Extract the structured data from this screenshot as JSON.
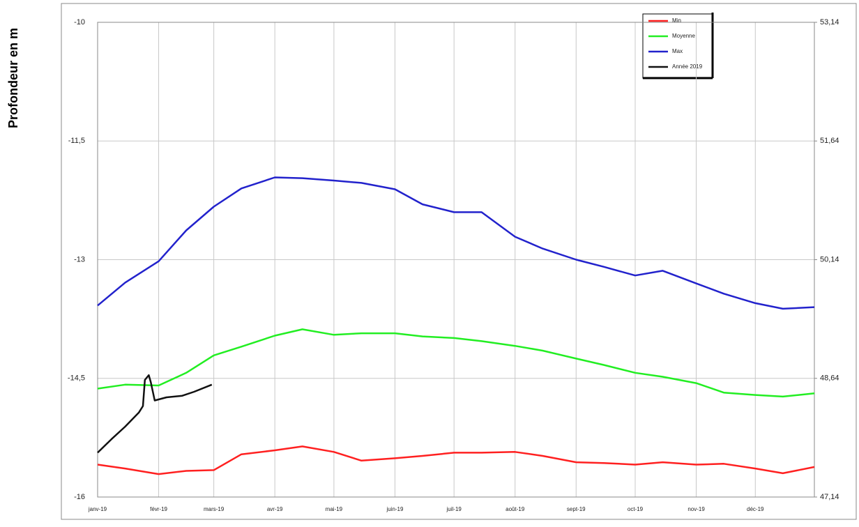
{
  "chart_data": {
    "type": "line",
    "y_label": "Profondeur en m",
    "xlim": [
      1,
      365
    ],
    "xticks": [
      {
        "value": 1,
        "label": "janv-19"
      },
      {
        "value": 32,
        "label": "févr-19"
      },
      {
        "value": 60,
        "label": "mars-19"
      },
      {
        "value": 91,
        "label": "avr-19"
      },
      {
        "value": 121,
        "label": "mai-19"
      },
      {
        "value": 152,
        "label": "juin-19"
      },
      {
        "value": 182,
        "label": "juil-19"
      },
      {
        "value": 213,
        "label": "août-19"
      },
      {
        "value": 244,
        "label": "sept-19"
      },
      {
        "value": 274,
        "label": "oct-19"
      },
      {
        "value": 305,
        "label": "nov-19"
      },
      {
        "value": 335,
        "label": "déc-19"
      }
    ],
    "ylim": [
      -16,
      -10
    ],
    "yticks": [
      -16,
      {
        "value": -14.5,
        "label": "-14,5"
      },
      -13,
      {
        "value": -11.5,
        "label": "-11,5"
      },
      -10
    ],
    "y2lim": [
      47.14,
      53.14
    ],
    "y2ticks": [
      {
        "value": 47.14,
        "label": "47,14"
      },
      {
        "value": 48.64,
        "label": "48,64"
      },
      {
        "value": 50.14,
        "label": "50,14"
      },
      {
        "value": 51.64,
        "label": "51,64"
      },
      {
        "value": 53.14,
        "label": "53,14"
      }
    ],
    "grid": true,
    "legend": "top-right",
    "x": [
      1,
      15,
      32,
      46,
      60,
      74,
      91,
      105,
      121,
      135,
      152,
      166,
      182,
      196,
      213,
      227,
      244,
      258,
      274,
      288,
      305,
      319,
      335,
      349,
      365
    ],
    "series": [
      {
        "name": "Min",
        "color": "#ff2020",
        "values": [
          -15.59,
          -15.64,
          -15.71,
          -15.67,
          -15.66,
          -15.46,
          -15.41,
          -15.36,
          -15.43,
          -15.54,
          -15.51,
          -15.48,
          -15.44,
          -15.44,
          -15.43,
          -15.48,
          -15.56,
          -15.57,
          -15.59,
          -15.56,
          -15.59,
          -15.58,
          -15.64,
          -15.7,
          -15.62
        ]
      },
      {
        "name": "Moyenne",
        "color": "#22ee22",
        "values": [
          -14.63,
          -14.58,
          -14.59,
          -14.43,
          -14.21,
          -14.1,
          -13.96,
          -13.88,
          -13.95,
          -13.93,
          -13.93,
          -13.97,
          -13.99,
          -14.03,
          -14.09,
          -14.15,
          -14.25,
          -14.33,
          -14.43,
          -14.48,
          -14.56,
          -14.68,
          -14.71,
          -14.73,
          -14.69
        ]
      },
      {
        "name": "Max",
        "color": "#2222cc",
        "values": [
          -13.58,
          -13.29,
          -13.02,
          -12.63,
          -12.33,
          -12.1,
          -11.96,
          -11.97,
          -12.0,
          -12.03,
          -12.11,
          -12.3,
          -12.4,
          -12.4,
          -12.71,
          -12.86,
          -13.0,
          -13.09,
          -13.2,
          -13.14,
          -13.3,
          -13.43,
          -13.55,
          -13.62,
          -13.6
        ]
      },
      {
        "name": "Année 2019",
        "color": "#111111",
        "x": [
          1,
          8,
          15,
          22,
          24,
          25,
          27,
          28,
          30,
          36,
          44,
          50,
          59
        ],
        "values": [
          -15.44,
          -15.27,
          -15.11,
          -14.93,
          -14.85,
          -14.52,
          -14.46,
          -14.55,
          -14.78,
          -14.74,
          -14.72,
          -14.67,
          -14.58
        ]
      }
    ]
  }
}
